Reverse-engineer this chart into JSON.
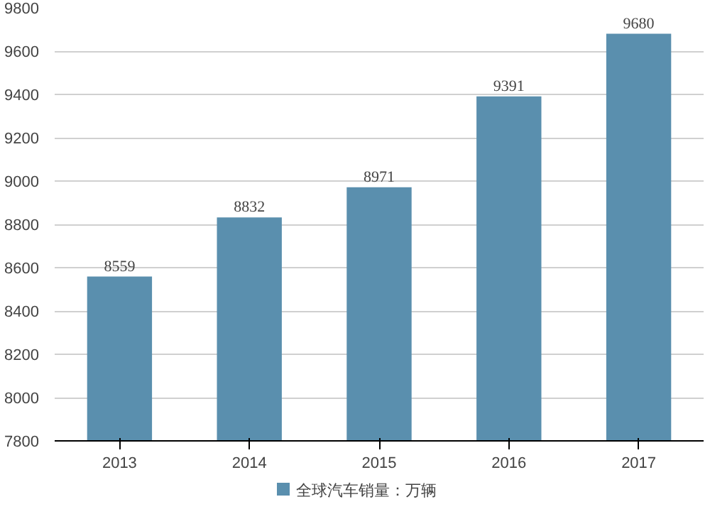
{
  "chart_data": {
    "type": "bar",
    "categories": [
      "2013",
      "2014",
      "2015",
      "2016",
      "2017"
    ],
    "series": [
      {
        "name": "全球汽车销量：万辆",
        "color": "#5a8fae",
        "values": [
          8559,
          8832,
          8971,
          9391,
          9680
        ]
      }
    ],
    "ylim": [
      7800,
      9800
    ],
    "yticks": [
      7800,
      8000,
      8200,
      8400,
      8600,
      8800,
      9000,
      9200,
      9400,
      9600,
      9800
    ],
    "grid": "y",
    "legend": "bottom",
    "data_labels": true
  }
}
